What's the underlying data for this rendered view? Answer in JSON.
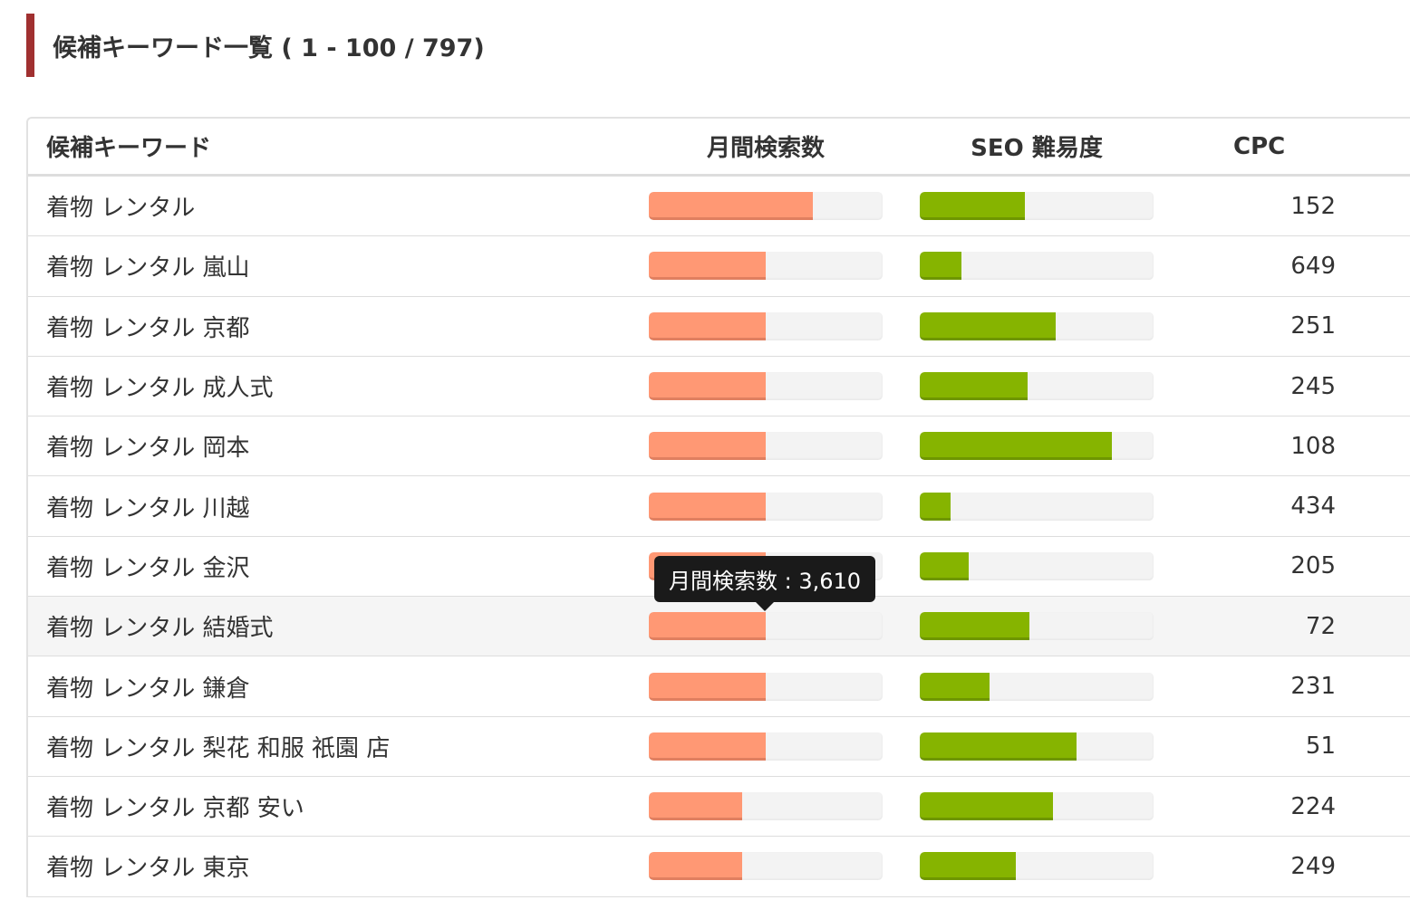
{
  "title": "候補キーワード一覧 ( 1 - 100 / 797)",
  "columns": {
    "keyword": "候補キーワード",
    "search_volume": "月間検索数",
    "seo": "SEO 難易度",
    "cpc": "CPC"
  },
  "colors": {
    "accent": "#a03030",
    "search_bar": "#ff9874",
    "seo_bar": "#86b400"
  },
  "tooltip": "月間検索数 : 3,610",
  "rows": [
    {
      "keyword": "着物 レンタル",
      "search_pct": 70,
      "seo_pct": 45,
      "cpc": "152"
    },
    {
      "keyword": "着物 レンタル 嵐山",
      "search_pct": 50,
      "seo_pct": 18,
      "cpc": "649"
    },
    {
      "keyword": "着物 レンタル 京都",
      "search_pct": 50,
      "seo_pct": 58,
      "cpc": "251"
    },
    {
      "keyword": "着物 レンタル 成人式",
      "search_pct": 50,
      "seo_pct": 46,
      "cpc": "245"
    },
    {
      "keyword": "着物 レンタル 岡本",
      "search_pct": 50,
      "seo_pct": 82,
      "cpc": "108"
    },
    {
      "keyword": "着物 レンタル 川越",
      "search_pct": 50,
      "seo_pct": 13,
      "cpc": "434"
    },
    {
      "keyword": "着物 レンタル 金沢",
      "search_pct": 50,
      "seo_pct": 21,
      "cpc": "205"
    },
    {
      "keyword": "着物 レンタル 結婚式",
      "search_pct": 50,
      "seo_pct": 47,
      "cpc": "72",
      "hover": true
    },
    {
      "keyword": "着物 レンタル 鎌倉",
      "search_pct": 50,
      "seo_pct": 30,
      "cpc": "231"
    },
    {
      "keyword": "着物 レンタル 梨花 和服 祇園 店",
      "search_pct": 50,
      "seo_pct": 67,
      "cpc": "51"
    },
    {
      "keyword": "着物 レンタル 京都 安い",
      "search_pct": 40,
      "seo_pct": 57,
      "cpc": "224"
    },
    {
      "keyword": "着物 レンタル 東京",
      "search_pct": 40,
      "seo_pct": 41,
      "cpc": "249"
    }
  ]
}
